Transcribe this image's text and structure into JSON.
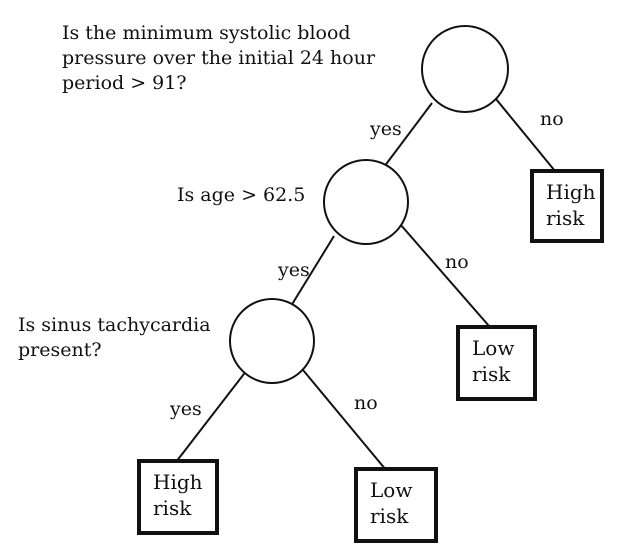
{
  "questions": {
    "q1": "Is the minimum systolic blood\npressure over the initial 24 hour\nperiod > 91?",
    "q2": "Is age > 62.5",
    "q3": "Is sinus tachycardia\npresent?"
  },
  "edges": {
    "q1_yes": "yes",
    "q1_no": "no",
    "q2_yes": "yes",
    "q2_no": "no",
    "q3_yes": "yes",
    "q3_no": "no"
  },
  "leaves": {
    "leaf1": "High\nrisk",
    "leaf2": "Low\nrisk",
    "leaf3": "High\nrisk",
    "leaf4": "Low\nrisk"
  }
}
